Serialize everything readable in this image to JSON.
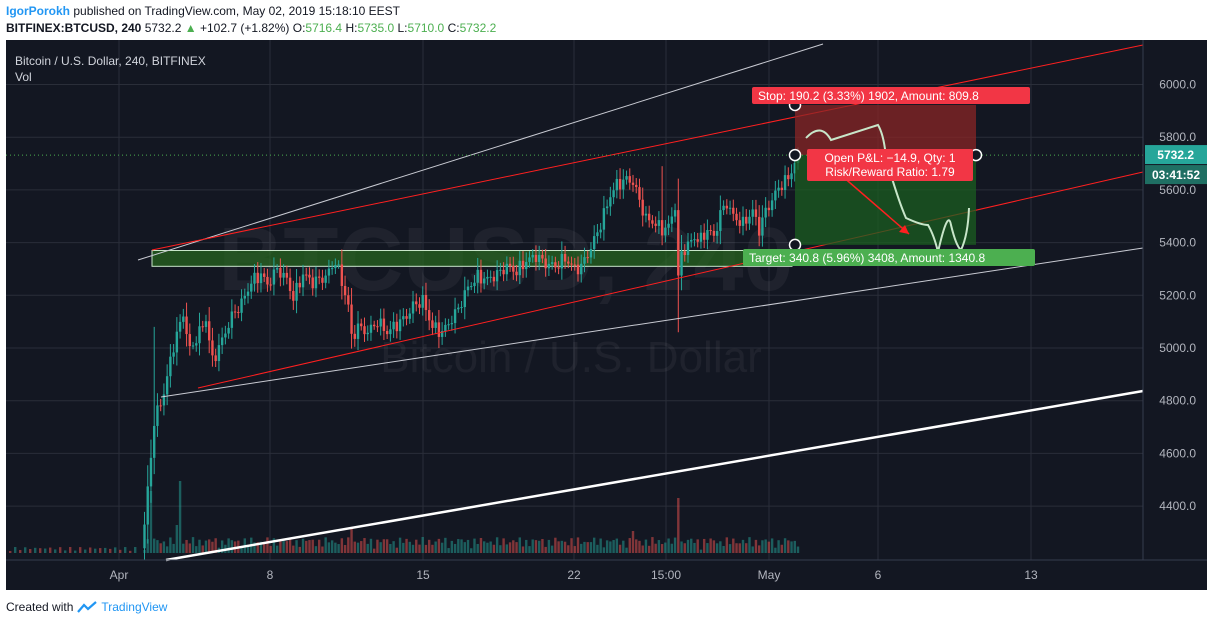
{
  "header": {
    "author": "IgorPorokh",
    "published": "published on TradingView.com, May 02, 2019 15:18:10 EEST",
    "symbol": "BITFINEX:BTCUSD, 240",
    "last": "5732.2",
    "change": "+102.7 (+1.82%)",
    "o_label": "O:",
    "o": "5716.4",
    "h_label": "H:",
    "h": "5735.0",
    "l_label": "L:",
    "l": "5710.0",
    "c_label": "C:",
    "c": "5732.2"
  },
  "chart_data": {
    "type": "line",
    "title": "Bitcoin / U.S. Dollar, 240, BITFINEX",
    "subtitle": "Vol",
    "watermark_symbol": "BTCUSD, 240",
    "watermark_name": "Bitcoin / U.S. Dollar",
    "ylim": [
      4200,
      6200
    ],
    "y_ticks": [
      "6000.0",
      "5800.0",
      "5600.0",
      "5400.0",
      "5200.0",
      "5000.0",
      "4800.0",
      "4600.0",
      "4400.0"
    ],
    "x_ticks": [
      "Apr",
      "8",
      "15",
      "22",
      "15:00",
      "May",
      "6",
      "13"
    ],
    "last_price_label": "5732.2",
    "countdown_label": "03:41:52",
    "position": {
      "stop_label": "Stop: 190.2 (3.33%) 1902, Amount: 809.8",
      "pnl_label": "Open P&L: −14.9, Qty: 1",
      "ratio_label": "Risk/Reward Ratio: 1.79",
      "target_label": "Target: 340.8 (5.96%) 3408, Amount: 1340.8",
      "entry": 5732.2,
      "stop": 5922.4,
      "target": 5391.4
    },
    "colors": {
      "background": "#131722",
      "up": "#26a69a",
      "down": "#ef5350",
      "channel": "#ff2020",
      "trend": "#ffffff",
      "zone": "#2a6e1e",
      "stop_fill": "#8a2525",
      "target_fill": "#1b5e20"
    }
  },
  "footer": {
    "created_with": "Created with",
    "brand": "TradingView"
  }
}
